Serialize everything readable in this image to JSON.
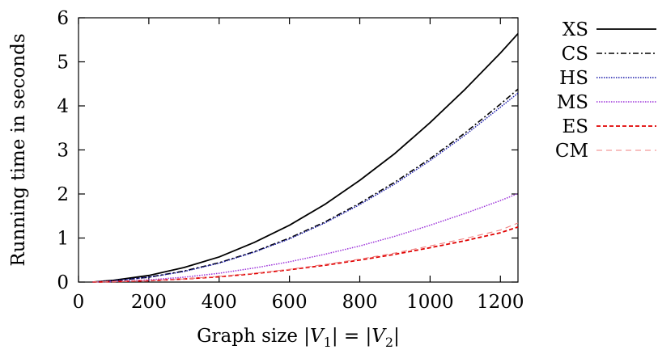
{
  "chart_data": {
    "type": "line",
    "xlabel": "Graph size |V1| = |V2|",
    "ylabel": "Running time in seconds",
    "xlim": [
      0,
      1250
    ],
    "ylim": [
      0,
      6
    ],
    "xticks": [
      "0",
      "200",
      "400",
      "600",
      "800",
      "1000",
      "1200"
    ],
    "yticks": [
      "0",
      "1",
      "2",
      "3",
      "4",
      "5",
      "6"
    ],
    "grid": false,
    "legend_position": "outside-right",
    "x": [
      40,
      100,
      200,
      300,
      400,
      500,
      600,
      700,
      800,
      900,
      1000,
      1100,
      1200,
      1250
    ],
    "series": [
      {
        "name": "XS",
        "color": "#000000",
        "dash": "solid",
        "values": [
          0.0,
          0.04,
          0.15,
          0.33,
          0.57,
          0.9,
          1.29,
          1.76,
          2.31,
          2.92,
          3.62,
          4.38,
          5.2,
          5.64
        ]
      },
      {
        "name": "CS",
        "color": "#000000",
        "dash": "dashdot",
        "values": [
          0.0,
          0.03,
          0.11,
          0.25,
          0.44,
          0.69,
          1.0,
          1.36,
          1.79,
          2.27,
          2.8,
          3.39,
          4.04,
          4.38
        ]
      },
      {
        "name": "HS",
        "color": "#1a1aaa",
        "dash": "dotted",
        "values": [
          0.0,
          0.03,
          0.11,
          0.24,
          0.43,
          0.68,
          0.98,
          1.34,
          1.76,
          2.23,
          2.76,
          3.34,
          3.97,
          4.29
        ]
      },
      {
        "name": "MS",
        "color": "#9b30d9",
        "dash": "dotted",
        "values": [
          0.0,
          0.01,
          0.05,
          0.11,
          0.2,
          0.32,
          0.46,
          0.63,
          0.82,
          1.04,
          1.29,
          1.56,
          1.85,
          2.01
        ]
      },
      {
        "name": "ES",
        "color": "#e00000",
        "dash": "dashed",
        "values": [
          0.0,
          0.01,
          0.03,
          0.07,
          0.12,
          0.19,
          0.28,
          0.38,
          0.5,
          0.63,
          0.78,
          0.94,
          1.12,
          1.25
        ]
      },
      {
        "name": "CM",
        "color": "#f08080",
        "dash": "longdash",
        "values": [
          0.0,
          0.01,
          0.03,
          0.07,
          0.13,
          0.2,
          0.29,
          0.4,
          0.52,
          0.66,
          0.82,
          0.99,
          1.18,
          1.34
        ]
      }
    ]
  }
}
